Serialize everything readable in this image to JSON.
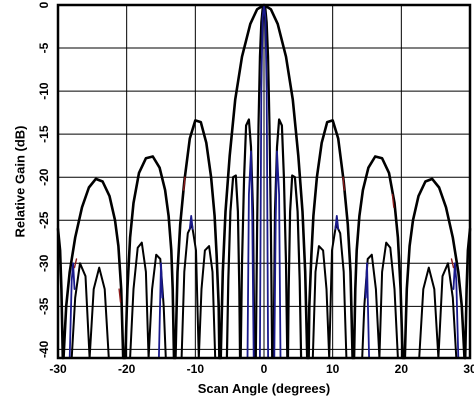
{
  "chart_data": {
    "type": "line",
    "title": "",
    "xlabel": "Scan Angle (degrees)",
    "ylabel": "Relative Gain (dB)",
    "xlim": [
      -30,
      30
    ],
    "ylim": [
      -41,
      0
    ],
    "xticks": [
      -30,
      -20,
      -10,
      0,
      10,
      20,
      30
    ],
    "yticks": [
      0,
      -5,
      -10,
      -15,
      -20,
      -25,
      -30,
      -35,
      -40
    ],
    "grid": true,
    "legend": "none",
    "series": [
      {
        "color": "#000000",
        "width": 2.6,
        "points": [
          [
            -30.0,
            -26.0
          ],
          [
            -29.7,
            -28.5
          ],
          [
            -29.5,
            -33.0
          ],
          [
            -29.3,
            -41.0
          ],
          [
            -29.2,
            -41.0
          ],
          [
            -28.8,
            -35.0
          ],
          [
            -28.3,
            -31.0
          ],
          [
            -27.5,
            -27.0
          ],
          [
            -26.5,
            -23.5
          ],
          [
            -25.5,
            -21.2
          ],
          [
            -24.5,
            -20.2
          ],
          [
            -23.5,
            -20.5
          ],
          [
            -22.5,
            -22.2
          ],
          [
            -21.7,
            -25.0
          ],
          [
            -21.2,
            -28.0
          ],
          [
            -20.8,
            -33.0
          ],
          [
            -20.5,
            -41.0
          ],
          [
            -20.2,
            -41.0
          ],
          [
            -19.9,
            -33.0
          ],
          [
            -19.5,
            -27.0
          ],
          [
            -19.0,
            -23.0
          ],
          [
            -18.2,
            -19.5
          ],
          [
            -17.2,
            -17.8
          ],
          [
            -16.2,
            -17.6
          ],
          [
            -15.2,
            -18.9
          ],
          [
            -14.4,
            -21.5
          ],
          [
            -13.9,
            -24.5
          ],
          [
            -13.5,
            -28.5
          ],
          [
            -13.3,
            -33.0
          ],
          [
            -13.1,
            -41.0
          ],
          [
            -12.9,
            -41.0
          ],
          [
            -12.6,
            -31.0
          ],
          [
            -12.2,
            -25.5
          ],
          [
            -11.6,
            -20.5
          ],
          [
            -10.8,
            -15.5
          ],
          [
            -10.0,
            -13.4
          ],
          [
            -9.2,
            -13.6
          ],
          [
            -8.4,
            -16.0
          ],
          [
            -7.7,
            -20.0
          ],
          [
            -7.2,
            -24.5
          ],
          [
            -6.9,
            -29.0
          ],
          [
            -6.6,
            -35.0
          ],
          [
            -6.5,
            -41.0
          ],
          [
            -6.3,
            -41.0
          ],
          [
            -6.0,
            -31.0
          ],
          [
            -5.6,
            -24.0
          ],
          [
            -5.0,
            -17.5
          ],
          [
            -4.2,
            -11.0
          ],
          [
            -3.2,
            -6.0
          ],
          [
            -2.0,
            -2.2
          ],
          [
            -1.0,
            -0.5
          ],
          [
            0.0,
            0.0
          ],
          [
            1.0,
            -0.5
          ],
          [
            2.0,
            -2.2
          ],
          [
            3.2,
            -6.0
          ],
          [
            4.2,
            -11.0
          ],
          [
            5.0,
            -17.5
          ],
          [
            5.6,
            -24.0
          ],
          [
            6.0,
            -31.0
          ],
          [
            6.3,
            -41.0
          ],
          [
            6.5,
            -41.0
          ],
          [
            6.6,
            -35.0
          ],
          [
            6.9,
            -29.0
          ],
          [
            7.2,
            -24.5
          ],
          [
            7.7,
            -20.0
          ],
          [
            8.4,
            -16.0
          ],
          [
            9.2,
            -13.6
          ],
          [
            10.0,
            -13.4
          ],
          [
            10.8,
            -15.5
          ],
          [
            11.6,
            -20.5
          ],
          [
            12.2,
            -25.5
          ],
          [
            12.6,
            -31.0
          ],
          [
            12.9,
            -41.0
          ],
          [
            13.1,
            -41.0
          ],
          [
            13.3,
            -33.0
          ],
          [
            13.5,
            -28.5
          ],
          [
            13.9,
            -24.5
          ],
          [
            14.4,
            -21.5
          ],
          [
            15.2,
            -18.9
          ],
          [
            16.2,
            -17.6
          ],
          [
            17.2,
            -17.8
          ],
          [
            18.2,
            -19.5
          ],
          [
            19.0,
            -23.0
          ],
          [
            19.5,
            -27.0
          ],
          [
            19.9,
            -33.0
          ],
          [
            20.2,
            -41.0
          ],
          [
            20.5,
            -41.0
          ],
          [
            20.8,
            -33.0
          ],
          [
            21.2,
            -28.0
          ],
          [
            21.7,
            -25.0
          ],
          [
            22.5,
            -22.2
          ],
          [
            23.5,
            -20.5
          ],
          [
            24.5,
            -20.2
          ],
          [
            25.5,
            -21.2
          ],
          [
            26.5,
            -23.5
          ],
          [
            27.5,
            -27.0
          ],
          [
            28.3,
            -31.0
          ],
          [
            28.8,
            -35.0
          ],
          [
            29.2,
            -41.0
          ],
          [
            29.3,
            -41.0
          ],
          [
            29.5,
            -33.0
          ],
          [
            29.7,
            -28.5
          ],
          [
            30.0,
            -26.0
          ]
        ]
      },
      {
        "color": "#000000",
        "width": 2.2,
        "points": [
          [
            -1.2,
            -41.0
          ],
          [
            -1.0,
            -26.0
          ],
          [
            -0.8,
            -14.0
          ],
          [
            -0.6,
            -6.0
          ],
          [
            -0.4,
            -2.0
          ],
          [
            -0.2,
            -0.4
          ],
          [
            0.0,
            0.0
          ],
          [
            0.2,
            -0.4
          ],
          [
            0.4,
            -2.0
          ],
          [
            0.6,
            -6.0
          ],
          [
            0.8,
            -14.0
          ],
          [
            1.0,
            -26.0
          ],
          [
            1.2,
            -41.0
          ]
        ]
      },
      {
        "color": "#000000",
        "width": 2.2,
        "points": [
          [
            -3.4,
            -41.0
          ],
          [
            -3.2,
            -30.0
          ],
          [
            -2.9,
            -20.0
          ],
          [
            -2.6,
            -14.0
          ],
          [
            -2.2,
            -13.3
          ],
          [
            -1.9,
            -16.5
          ],
          [
            -1.6,
            -24.0
          ],
          [
            -1.4,
            -41.0
          ]
        ]
      },
      {
        "color": "#000000",
        "width": 2.2,
        "points": [
          [
            1.4,
            -41.0
          ],
          [
            1.6,
            -24.0
          ],
          [
            1.9,
            -16.5
          ],
          [
            2.2,
            -13.3
          ],
          [
            2.6,
            -14.0
          ],
          [
            2.9,
            -20.0
          ],
          [
            3.2,
            -30.0
          ],
          [
            3.4,
            -41.0
          ]
        ]
      },
      {
        "color": "#000000",
        "width": 2.2,
        "points": [
          [
            -5.4,
            -41.0
          ],
          [
            -5.2,
            -32.0
          ],
          [
            -4.9,
            -24.0
          ],
          [
            -4.5,
            -20.0
          ],
          [
            -4.1,
            -19.8
          ],
          [
            -3.8,
            -24.0
          ],
          [
            -3.6,
            -33.0
          ],
          [
            -3.5,
            -41.0
          ]
        ]
      },
      {
        "color": "#000000",
        "width": 2.2,
        "points": [
          [
            3.5,
            -41.0
          ],
          [
            3.6,
            -33.0
          ],
          [
            3.8,
            -24.0
          ],
          [
            4.1,
            -19.8
          ],
          [
            4.5,
            -20.0
          ],
          [
            4.9,
            -24.0
          ],
          [
            5.2,
            -32.0
          ],
          [
            5.4,
            -41.0
          ]
        ]
      },
      {
        "color": "#000000",
        "width": 2.0,
        "points": [
          [
            -12.0,
            -41.0
          ],
          [
            -11.6,
            -31.0
          ],
          [
            -11.1,
            -26.5
          ],
          [
            -10.5,
            -25.5
          ],
          [
            -9.9,
            -28.5
          ],
          [
            -9.5,
            -41.0
          ],
          [
            -9.1,
            -33.0
          ],
          [
            -8.6,
            -28.5
          ],
          [
            -8.0,
            -28.0
          ],
          [
            -7.5,
            -31.0
          ],
          [
            -7.1,
            -41.0
          ]
        ]
      },
      {
        "color": "#000000",
        "width": 2.0,
        "points": [
          [
            7.1,
            -41.0
          ],
          [
            7.5,
            -31.0
          ],
          [
            8.0,
            -28.0
          ],
          [
            8.6,
            -28.5
          ],
          [
            9.1,
            -33.0
          ],
          [
            9.5,
            -41.0
          ],
          [
            9.9,
            -28.5
          ],
          [
            10.5,
            -25.5
          ],
          [
            11.1,
            -26.5
          ],
          [
            11.6,
            -31.0
          ],
          [
            12.0,
            -41.0
          ]
        ]
      },
      {
        "color": "#000000",
        "width": 2.0,
        "points": [
          [
            -19.5,
            -41.0
          ],
          [
            -19.0,
            -33.0
          ],
          [
            -18.4,
            -28.2
          ],
          [
            -17.8,
            -27.6
          ],
          [
            -17.2,
            -31.0
          ],
          [
            -16.8,
            -41.0
          ],
          [
            -16.3,
            -33.0
          ],
          [
            -15.7,
            -29.0
          ],
          [
            -15.1,
            -29.5
          ],
          [
            -14.6,
            -35.0
          ],
          [
            -14.3,
            -41.0
          ]
        ]
      },
      {
        "color": "#000000",
        "width": 2.0,
        "points": [
          [
            14.3,
            -41.0
          ],
          [
            14.6,
            -35.0
          ],
          [
            15.1,
            -29.5
          ],
          [
            15.7,
            -29.0
          ],
          [
            16.3,
            -33.0
          ],
          [
            16.8,
            -41.0
          ],
          [
            17.2,
            -31.0
          ],
          [
            17.8,
            -27.6
          ],
          [
            18.4,
            -28.2
          ],
          [
            19.0,
            -33.0
          ],
          [
            19.5,
            -41.0
          ]
        ]
      },
      {
        "color": "#000000",
        "width": 2.0,
        "points": [
          [
            -28.0,
            -41.0
          ],
          [
            -27.5,
            -34.0
          ],
          [
            -26.8,
            -30.0
          ],
          [
            -26.0,
            -31.5
          ],
          [
            -25.4,
            -41.0
          ],
          [
            -24.8,
            -33.0
          ],
          [
            -24.0,
            -30.5
          ],
          [
            -23.2,
            -33.0
          ],
          [
            -22.6,
            -41.0
          ]
        ]
      },
      {
        "color": "#000000",
        "width": 2.0,
        "points": [
          [
            22.6,
            -41.0
          ],
          [
            23.2,
            -33.0
          ],
          [
            24.0,
            -30.5
          ],
          [
            24.8,
            -33.0
          ],
          [
            25.4,
            -41.0
          ],
          [
            26.0,
            -31.5
          ],
          [
            26.8,
            -30.0
          ],
          [
            27.5,
            -34.0
          ],
          [
            28.0,
            -41.0
          ]
        ]
      },
      {
        "color": "#1a1a8c",
        "width": 1.8,
        "points": [
          [
            -2.4,
            -41.0
          ],
          [
            -2.2,
            -22.0
          ],
          [
            -1.9,
            -17.0
          ],
          [
            -1.7,
            -25.0
          ],
          [
            -1.5,
            -41.0
          ]
        ]
      },
      {
        "color": "#1a1a8c",
        "width": 1.8,
        "points": [
          [
            1.5,
            -41.0
          ],
          [
            1.7,
            -25.0
          ],
          [
            1.9,
            -17.0
          ],
          [
            2.2,
            -22.0
          ],
          [
            2.4,
            -41.0
          ]
        ]
      },
      {
        "color": "#1a1a8c",
        "width": 1.8,
        "points": [
          [
            -0.6,
            -41.0
          ],
          [
            -0.4,
            -10.0
          ],
          [
            -0.2,
            -1.5
          ],
          [
            0.0,
            0.0
          ],
          [
            0.2,
            -1.5
          ],
          [
            0.4,
            -10.0
          ],
          [
            0.6,
            -41.0
          ]
        ]
      },
      {
        "color": "#1a1a8c",
        "width": 1.8,
        "points": [
          [
            -28.3,
            -41.0
          ],
          [
            -28.0,
            -32.0
          ],
          [
            -27.8,
            -30.0
          ],
          [
            -27.6,
            -33.0
          ]
        ]
      },
      {
        "color": "#1a1a8c",
        "width": 1.8,
        "points": [
          [
            27.6,
            -33.0
          ],
          [
            27.8,
            -30.0
          ],
          [
            28.0,
            -32.0
          ],
          [
            28.3,
            -41.0
          ]
        ]
      },
      {
        "color": "#1a1a8c",
        "width": 1.8,
        "points": [
          [
            -10.8,
            -26.0
          ],
          [
            -10.6,
            -24.5
          ],
          [
            -10.4,
            -26.0
          ]
        ]
      },
      {
        "color": "#1a1a8c",
        "width": 1.8,
        "points": [
          [
            10.4,
            -26.0
          ],
          [
            10.6,
            -24.5
          ],
          [
            10.8,
            -26.0
          ]
        ]
      },
      {
        "color": "#1a1a8c",
        "width": 1.8,
        "points": [
          [
            -15.3,
            -41.0
          ],
          [
            -15.0,
            -30.0
          ],
          [
            -14.8,
            -34.0
          ]
        ]
      },
      {
        "color": "#1a1a8c",
        "width": 1.8,
        "points": [
          [
            14.8,
            -34.0
          ],
          [
            15.0,
            -30.0
          ],
          [
            15.3,
            -41.0
          ]
        ]
      },
      {
        "color": "#8b1a1a",
        "width": 1.4,
        "points": [
          [
            -27.6,
            -30.5
          ],
          [
            -27.3,
            -29.5
          ]
        ]
      },
      {
        "color": "#8b1a1a",
        "width": 1.4,
        "points": [
          [
            -11.7,
            -21.5
          ],
          [
            -11.5,
            -20.0
          ]
        ]
      },
      {
        "color": "#8b1a1a",
        "width": 1.4,
        "points": [
          [
            11.5,
            -20.0
          ],
          [
            11.7,
            -21.5
          ]
        ]
      },
      {
        "color": "#8b1a1a",
        "width": 1.4,
        "points": [
          [
            18.7,
            -22.0
          ],
          [
            18.9,
            -23.5
          ]
        ]
      },
      {
        "color": "#8b1a1a",
        "width": 1.4,
        "points": [
          [
            27.3,
            -29.5
          ],
          [
            27.6,
            -30.5
          ]
        ]
      },
      {
        "color": "#8b1a1a",
        "width": 1.4,
        "points": [
          [
            -21.1,
            -33.0
          ],
          [
            -20.9,
            -34.5
          ]
        ]
      }
    ]
  }
}
